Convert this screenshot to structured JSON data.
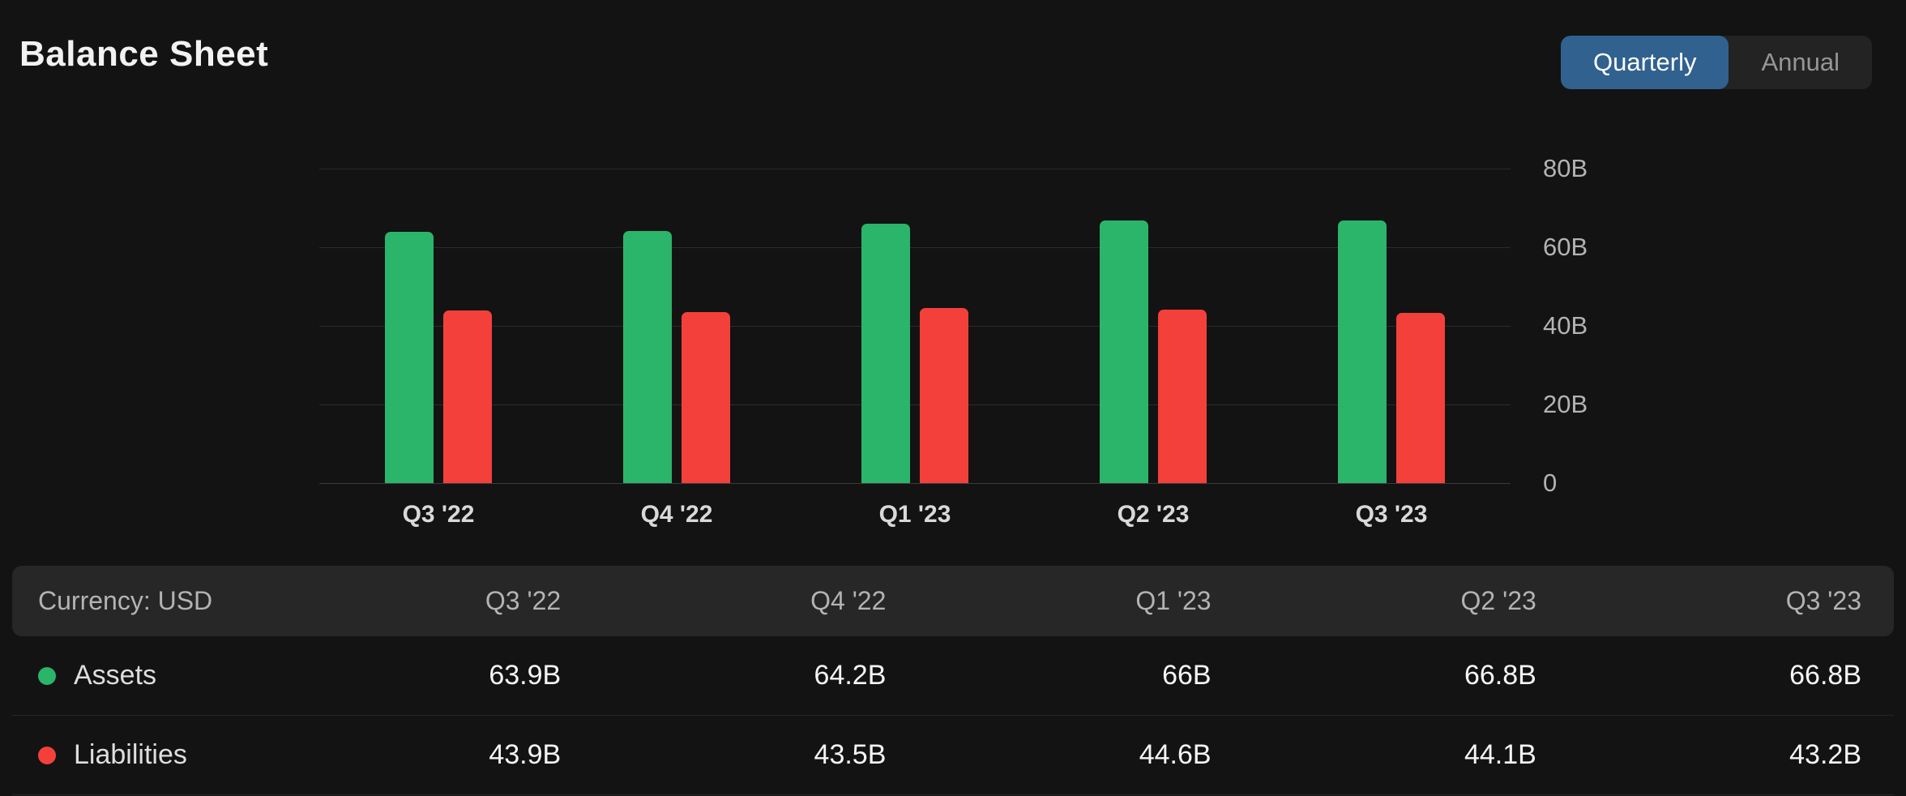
{
  "page": {
    "title": "Balance Sheet"
  },
  "toggle": {
    "options": [
      {
        "label": "Quarterly",
        "selected": true
      },
      {
        "label": "Annual",
        "selected": false
      }
    ]
  },
  "colors": {
    "background": "#131313",
    "assets_green": "#2ab56b",
    "liabilities_red": "#f4403a",
    "selected_toggle_blue": "#30618f",
    "table_header_bg": "#272727"
  },
  "chart_data": {
    "type": "bar",
    "categories": [
      "Q3 '22",
      "Q4 '22",
      "Q1 '23",
      "Q2 '23",
      "Q3 '23"
    ],
    "series": [
      {
        "name": "Assets",
        "color": "#2ab56b",
        "values": [
          63.9,
          64.2,
          66,
          66.8,
          66.8
        ]
      },
      {
        "name": "Liabilities",
        "color": "#f4403a",
        "values": [
          43.9,
          43.5,
          44.6,
          44.1,
          43.2
        ]
      }
    ],
    "unit": "B",
    "ylim": [
      0,
      80
    ],
    "yticks": [
      {
        "value": 80,
        "label": "80B"
      },
      {
        "value": 60,
        "label": "60B"
      },
      {
        "value": 40,
        "label": "40B"
      },
      {
        "value": 20,
        "label": "20B"
      },
      {
        "value": 0,
        "label": "0"
      }
    ],
    "grid": true,
    "yaxis_position": "right",
    "legend_position": "table"
  },
  "table": {
    "header": {
      "first_col": "Currency: USD",
      "columns": [
        "Q3 '22",
        "Q4 '22",
        "Q1 '23",
        "Q2 '23",
        "Q3 '23"
      ]
    },
    "rows": [
      {
        "label": "Assets",
        "dot_color": "#2ab56b",
        "values": [
          "63.9B",
          "64.2B",
          "66B",
          "66.8B",
          "66.8B"
        ]
      },
      {
        "label": "Liabilities",
        "dot_color": "#f4403a",
        "values": [
          "43.9B",
          "43.5B",
          "44.6B",
          "44.1B",
          "43.2B"
        ]
      }
    ]
  }
}
